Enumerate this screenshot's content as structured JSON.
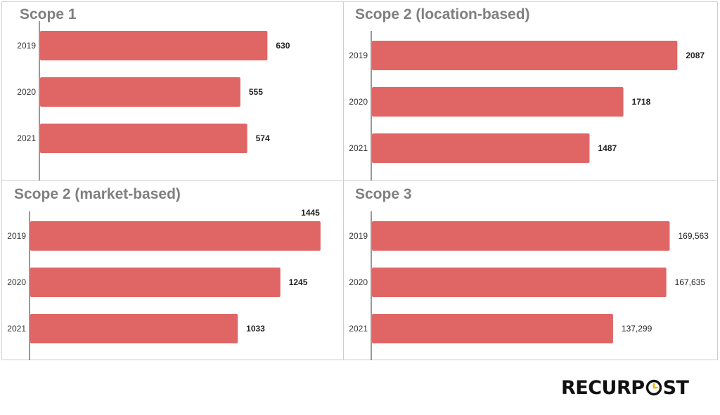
{
  "brand": {
    "logo_text_left": "RECURP",
    "logo_text_right": "ST",
    "logo_accent": "#f5b400"
  },
  "colors": {
    "bar": "#e06666",
    "title": "#7f7f7f",
    "axis": "#333333",
    "label": "#222222",
    "grid_border": "#cfcfcf"
  },
  "chart_data": [
    {
      "type": "bar",
      "orientation": "horizontal",
      "title": "Scope 1",
      "categories": [
        "2019",
        "2020",
        "2021"
      ],
      "values": [
        630,
        555,
        574
      ],
      "value_labels": [
        "630",
        "555",
        "574"
      ],
      "label_bold": true,
      "xlim": [
        0,
        830
      ]
    },
    {
      "type": "bar",
      "orientation": "horizontal",
      "title": "Scope 2 (location-based)",
      "categories": [
        "2019",
        "2020",
        "2021"
      ],
      "values": [
        2087,
        1718,
        1487
      ],
      "value_labels": [
        "2087",
        "1718",
        "1487"
      ],
      "label_bold": true,
      "xlim": [
        0,
        2340
      ]
    },
    {
      "type": "bar",
      "orientation": "horizontal",
      "title": "Scope 2 (market-based)",
      "categories": [
        "2019",
        "2020",
        "2021"
      ],
      "values": [
        1445,
        1245,
        1033
      ],
      "value_labels": [
        "1445",
        "1245",
        "1033"
      ],
      "label_bold": true,
      "xlim": [
        0,
        1540
      ]
    },
    {
      "type": "bar",
      "orientation": "horizontal",
      "title": "Scope 3",
      "categories": [
        "2019",
        "2020",
        "2021"
      ],
      "values": [
        169563,
        167635,
        137299
      ],
      "value_labels": [
        "169,563",
        "167,635",
        "137,299"
      ],
      "label_bold": false,
      "xlim": [
        0,
        195000
      ]
    }
  ]
}
